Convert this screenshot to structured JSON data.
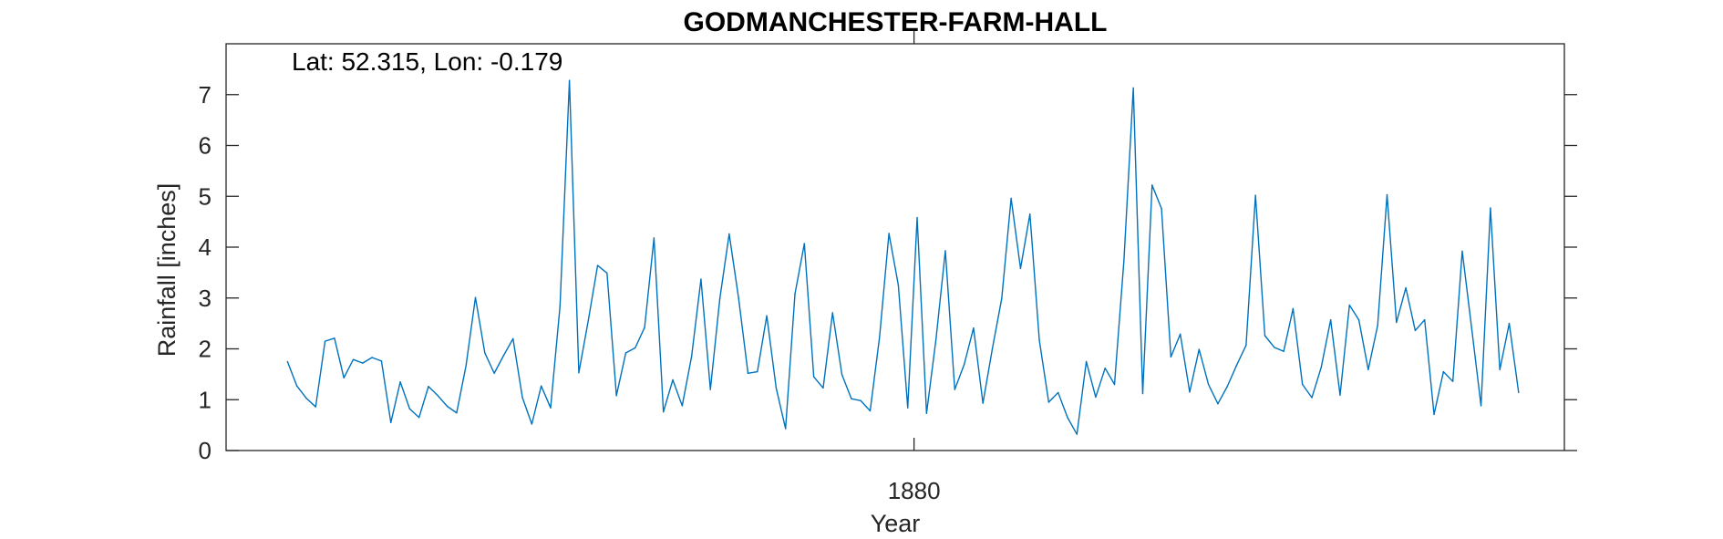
{
  "chart_data": {
    "type": "line",
    "title": "GODMANCHESTER-FARM-HALL",
    "xlabel": "Year",
    "ylabel": "Rainfall [inches]",
    "annotation": "Lat: 52.315, Lon: -0.179",
    "xlim": [
      1861.7,
      1897.3
    ],
    "ylim": [
      0,
      8
    ],
    "x_ticks": [
      1880
    ],
    "x_tick_labels": [
      "1880"
    ],
    "y_ticks": [
      0,
      1,
      2,
      3,
      4,
      5,
      6,
      7
    ],
    "y_tick_labels": [
      "0",
      "1",
      "2",
      "3",
      "4",
      "5",
      "6",
      "7"
    ],
    "grid": false,
    "line_color": "#0072BD",
    "x_start": 1863.333,
    "x_step": 0.25,
    "series": [
      {
        "values": [
          1.75,
          1.27,
          1.03,
          0.86,
          2.15,
          2.21,
          1.43,
          1.79,
          1.72,
          1.83,
          1.76,
          0.55,
          1.35,
          0.82,
          0.65,
          1.26,
          1.08,
          0.87,
          0.74,
          1.67,
          3.01,
          1.92,
          1.52,
          1.87,
          2.2,
          1.04,
          0.52,
          1.27,
          0.84,
          2.84,
          7.28,
          1.53,
          2.55,
          3.64,
          3.49,
          1.08,
          1.92,
          2.02,
          2.42,
          4.18,
          0.76,
          1.39,
          0.88,
          1.85,
          3.37,
          1.2,
          2.98,
          4.26,
          3.0,
          1.52,
          1.55,
          2.65,
          1.23,
          0.43,
          3.08,
          4.07,
          1.45,
          1.23,
          2.71,
          1.49,
          1.02,
          0.98,
          0.78,
          2.23,
          4.27,
          3.25,
          0.84,
          4.58,
          0.73,
          2.18,
          3.93,
          1.2,
          1.69,
          2.41,
          0.93,
          2.0,
          2.99,
          4.96,
          3.58,
          4.65,
          2.17,
          0.95,
          1.14,
          0.65,
          0.32,
          1.75,
          1.05,
          1.62,
          1.3,
          3.73,
          7.13,
          1.12,
          5.22,
          4.76,
          1.84,
          2.29,
          1.15,
          1.99,
          1.3,
          0.92,
          1.26,
          1.68,
          2.07,
          5.02,
          2.26,
          2.03,
          1.95,
          2.79,
          1.3,
          1.04,
          1.64,
          2.57,
          1.09,
          2.86,
          2.57,
          1.59,
          2.46,
          5.03,
          2.52,
          3.2,
          2.36,
          2.57,
          0.71,
          1.55,
          1.36,
          3.92,
          2.41,
          0.88,
          4.77,
          1.59,
          2.5,
          1.14
        ]
      }
    ]
  }
}
